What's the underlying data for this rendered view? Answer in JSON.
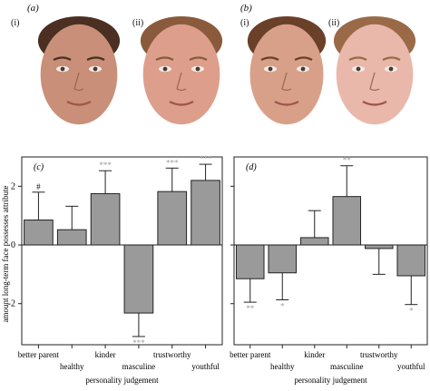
{
  "panels": {
    "a": {
      "label": "(a)",
      "sub": [
        "(i)",
        "(ii)"
      ]
    },
    "b": {
      "label": "(b)",
      "sub": [
        "(i)",
        "(ii)"
      ]
    }
  },
  "faces": [
    {
      "panel": "a",
      "sub": "i",
      "skin": "#c98f78",
      "hair": "#4a2f22",
      "kind": "male-long-term"
    },
    {
      "panel": "a",
      "sub": "ii",
      "skin": "#dd9f8c",
      "hair": "#8a5a3c",
      "kind": "male-short-term"
    },
    {
      "panel": "b",
      "sub": "i",
      "skin": "#d9a089",
      "hair": "#6a4028",
      "kind": "female-long-term"
    },
    {
      "panel": "b",
      "sub": "ii",
      "skin": "#e9b8ab",
      "hair": "#9a6a48",
      "kind": "female-short-term"
    }
  ],
  "y_axis_label": "amount long-term face possesses attribute",
  "chart_data": [
    {
      "type": "bar",
      "panel": "(c)",
      "xlabel": "personality judgement",
      "ylabel": "amount long-term face possesses attribute",
      "ylim": [
        -3.4,
        3.0
      ],
      "yticks": [
        "2",
        "0",
        "-2"
      ],
      "categories": [
        "better parent",
        "healthy",
        "kinder",
        "masculine",
        "trustworthy",
        "youthful"
      ],
      "values": [
        0.85,
        0.52,
        1.75,
        -2.32,
        1.82,
        2.2
      ],
      "errors": [
        0.95,
        0.8,
        0.78,
        0.8,
        0.8,
        0.55
      ],
      "significance": [
        "#",
        "",
        "***",
        "***",
        "***",
        "***"
      ]
    },
    {
      "type": "bar",
      "panel": "(d)",
      "xlabel": "personality judgement",
      "ylim": [
        -3.4,
        3.0
      ],
      "yticks": [
        "",
        "",
        ""
      ],
      "categories": [
        "better parent",
        "healthy",
        "kinder",
        "masculine",
        "trustworthy",
        "youthful"
      ],
      "values": [
        -1.15,
        -0.95,
        0.25,
        1.65,
        -0.12,
        -1.05
      ],
      "errors": [
        0.8,
        0.92,
        0.92,
        1.05,
        0.88,
        0.98
      ],
      "significance": [
        "**",
        "*",
        "",
        "**",
        "",
        "*"
      ]
    }
  ],
  "colors": {
    "bar": "#9a9a9a",
    "bar_stroke": "#222222",
    "axis": "#222222",
    "star": "#9a9a9a"
  }
}
